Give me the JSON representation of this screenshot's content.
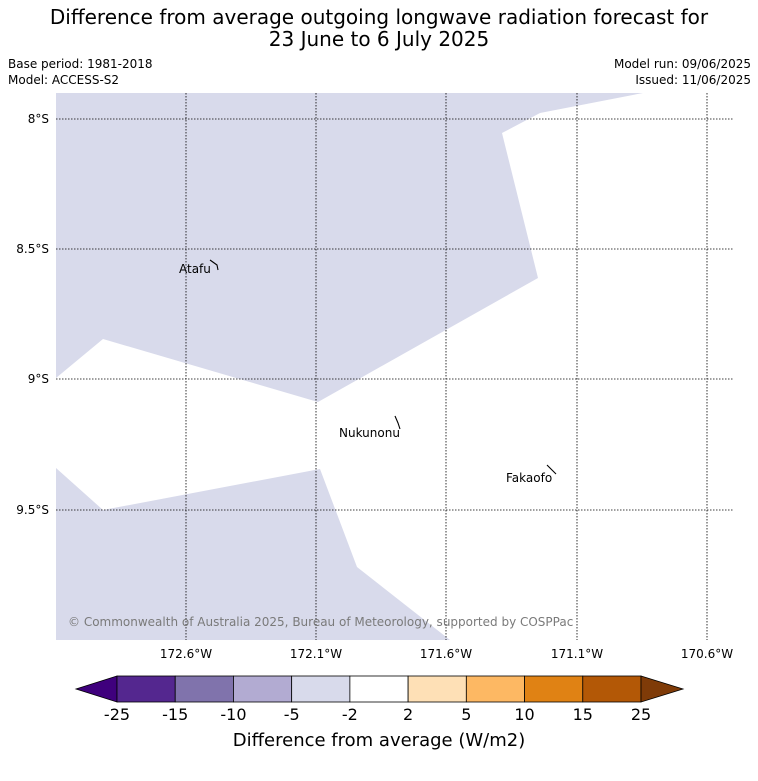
{
  "title_line1": "Difference from average outgoing longwave radiation forecast for",
  "title_line2": "23 June to 6 July 2025",
  "base_period": "Base period: 1981-2018",
  "model": "Model: ACCESS-S2",
  "model_run": "Model run: 09/06/2025",
  "issued": "Issued: 11/06/2025",
  "lat_labels": [
    "8°S",
    "8.5°S",
    "9°S",
    "9.5°S"
  ],
  "lon_labels": [
    "172.6°W",
    "172.1°W",
    "171.6°W",
    "171.1°W",
    "170.6°W"
  ],
  "places": [
    {
      "name": "Atafu"
    },
    {
      "name": "Nukunonu"
    },
    {
      "name": "Fakaofo"
    }
  ],
  "shaded_category": "-5 to -2",
  "copyright": "© Commonwealth of Australia 2025, Bureau of Meteorology, supported by COSPPac",
  "colorbar": {
    "title": "Difference from average (W/m2)",
    "ticks": [
      "-25",
      "-15",
      "-10",
      "-5",
      "-2",
      "2",
      "5",
      "10",
      "15",
      "25"
    ],
    "colors": [
      "#3f007d",
      "#54278f",
      "#8073ac",
      "#b2abd2",
      "#d8daeb",
      "#ffffff",
      "#fee0b6",
      "#fdb863",
      "#e08214",
      "#b35806",
      "#7f3b08"
    ]
  }
}
